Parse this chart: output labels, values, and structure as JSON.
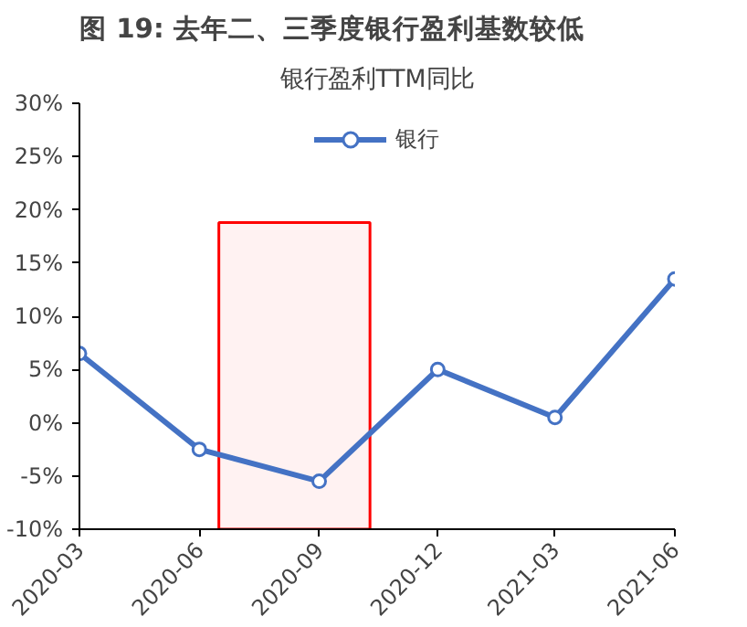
{
  "chart_data": {
    "type": "line",
    "title": "图 19:  去年二、三季度银行盈利基数较低",
    "subtitle": "银行盈利TTM同比",
    "x": [
      "2020-03",
      "2020-06",
      "2020-09",
      "2020-12",
      "2021-03",
      "2021-06"
    ],
    "series": [
      {
        "name": "银行",
        "color": "#4472c4",
        "values": [
          6.5,
          -2.5,
          -5.5,
          5,
          0.5,
          13.5
        ]
      }
    ],
    "ylim": [
      -10,
      30
    ],
    "xlim": [
      "2020-03",
      "2021-06"
    ],
    "yticks": [
      {
        "value": -10,
        "label": "-10%"
      },
      {
        "value": -5,
        "label": "-5%"
      },
      {
        "value": 0,
        "label": "0%"
      },
      {
        "value": 5,
        "label": "5%"
      },
      {
        "value": 10,
        "label": "10%"
      },
      {
        "value": 15,
        "label": "15%"
      },
      {
        "value": 20,
        "label": "20%"
      },
      {
        "value": 25,
        "label": "25%"
      },
      {
        "value": 30,
        "label": "30%"
      }
    ],
    "xticks": [
      "2020-03",
      "2020-06",
      "2020-09",
      "2020-12",
      "2021-03",
      "2021-06"
    ],
    "bands": [
      {
        "axis": "x",
        "from": "2020-06-16",
        "to": "2020-10-10",
        "color": "#ff0000"
      }
    ],
    "marker": "circle",
    "legend": "top",
    "grid": false
  }
}
